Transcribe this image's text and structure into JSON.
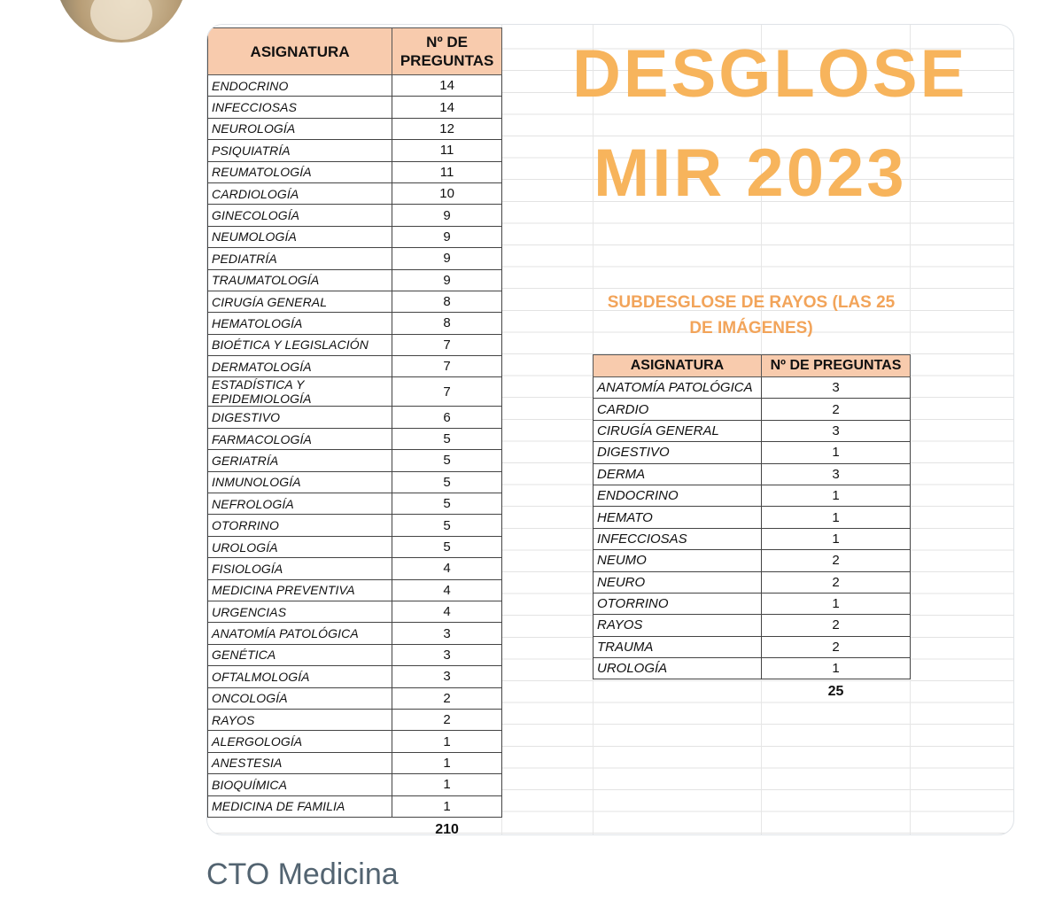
{
  "post": {
    "caption": "CTO Medicina"
  },
  "sheet": {
    "title_line1": "DESGLOSE",
    "title_line2": "MIR 2023",
    "subtitle": "SUBDESGLOSE DE RAYOS (LAS 25 DE IMÁGENES)",
    "main_table": {
      "headers": [
        "ASIGNATURA",
        "Nº DE PREGUNTAS"
      ],
      "rows": [
        {
          "subject": "ENDOCRINO",
          "count": "14"
        },
        {
          "subject": "INFECCIOSAS",
          "count": "14"
        },
        {
          "subject": "NEUROLOGÍA",
          "count": "12"
        },
        {
          "subject": "PSIQUIATRÍA",
          "count": "11"
        },
        {
          "subject": "REUMATOLOGÍA",
          "count": "11"
        },
        {
          "subject": "CARDIOLOGÍA",
          "count": "10"
        },
        {
          "subject": "GINECOLOGÍA",
          "count": "9"
        },
        {
          "subject": "NEUMOLOGÍA",
          "count": "9"
        },
        {
          "subject": "PEDIATRÍA",
          "count": "9"
        },
        {
          "subject": "TRAUMATOLOGÍA",
          "count": "9"
        },
        {
          "subject": "CIRUGÍA GENERAL",
          "count": "8"
        },
        {
          "subject": "HEMATOLOGÍA",
          "count": "8"
        },
        {
          "subject": "BIOÉTICA Y LEGISLACIÓN",
          "count": "7"
        },
        {
          "subject": "DERMATOLOGÍA",
          "count": "7"
        },
        {
          "subject": "ESTADÍSTICA Y EPIDEMIOLOGÍA",
          "count": "7"
        },
        {
          "subject": "DIGESTIVO",
          "count": "6"
        },
        {
          "subject": "FARMACOLOGÍA",
          "count": "5"
        },
        {
          "subject": "GERIATRÍA",
          "count": "5"
        },
        {
          "subject": "INMUNOLOGÍA",
          "count": "5"
        },
        {
          "subject": "NEFROLOGÍA",
          "count": "5"
        },
        {
          "subject": "OTORRINO",
          "count": "5"
        },
        {
          "subject": "UROLOGÍA",
          "count": "5"
        },
        {
          "subject": "FISIOLOGÍA",
          "count": "4"
        },
        {
          "subject": "MEDICINA PREVENTIVA",
          "count": "4"
        },
        {
          "subject": "URGENCIAS",
          "count": "4"
        },
        {
          "subject": "ANATOMÍA PATOLÓGICA",
          "count": "3"
        },
        {
          "subject": "GENÉTICA",
          "count": "3"
        },
        {
          "subject": "OFTALMOLOGÍA",
          "count": "3"
        },
        {
          "subject": "ONCOLOGÍA",
          "count": "2"
        },
        {
          "subject": "RAYOS",
          "count": "2"
        },
        {
          "subject": "ALERGOLOGÍA",
          "count": "1"
        },
        {
          "subject": "ANESTESIA",
          "count": "1"
        },
        {
          "subject": "BIOQUÍMICA",
          "count": "1"
        },
        {
          "subject": "MEDICINA DE FAMILIA",
          "count": "1"
        }
      ],
      "total": "210"
    },
    "sub_table": {
      "headers": [
        "ASIGNATURA",
        "Nº DE PREGUNTAS"
      ],
      "rows": [
        {
          "subject": "ANATOMÍA PATOLÓGICA",
          "count": "3"
        },
        {
          "subject": "CARDIO",
          "count": "2"
        },
        {
          "subject": "CIRUGÍA GENERAL",
          "count": "3"
        },
        {
          "subject": "DIGESTIVO",
          "count": "1"
        },
        {
          "subject": "DERMA",
          "count": "3"
        },
        {
          "subject": "ENDOCRINO",
          "count": "1"
        },
        {
          "subject": "HEMATO",
          "count": "1"
        },
        {
          "subject": "INFECCIOSAS",
          "count": "1"
        },
        {
          "subject": "NEUMO",
          "count": "2"
        },
        {
          "subject": "NEURO",
          "count": "2"
        },
        {
          "subject": "OTORRINO",
          "count": "1"
        },
        {
          "subject": "RAYOS",
          "count": "2"
        },
        {
          "subject": "TRAUMA",
          "count": "2"
        },
        {
          "subject": "UROLOGÍA",
          "count": "1"
        }
      ],
      "total": "25"
    }
  },
  "colors": {
    "header_fill": "#f8cbad",
    "title": "#f7b45c",
    "subtitle": "#f2a45a",
    "caption": "#536471"
  }
}
